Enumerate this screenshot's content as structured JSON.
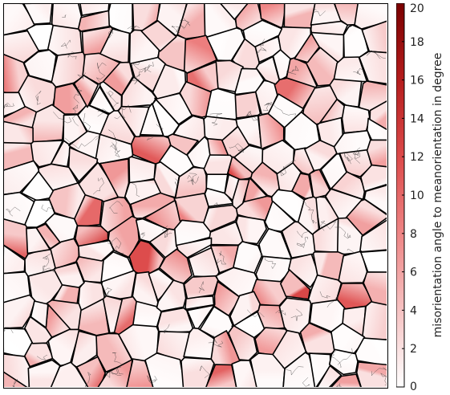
{
  "chart_data": {
    "type": "heatmap",
    "description_of_content": "",
    "colorbar": {
      "label": "misorientation angle to meanorientation in degree",
      "range": [
        0,
        20
      ],
      "ticks": [
        0,
        2,
        4,
        6,
        8,
        10,
        12,
        14,
        16,
        18,
        20
      ],
      "tick_labels": [
        "0",
        "2",
        "4",
        "6",
        "8",
        "10",
        "12",
        "14",
        "16",
        "18",
        "20"
      ],
      "colormap": [
        "#ffffff",
        "#f6c2c2",
        "#ee8585",
        "#dc4a4a",
        "#b51d1d",
        "#7a0000"
      ]
    },
    "grain_boundary_color": "#000000"
  }
}
